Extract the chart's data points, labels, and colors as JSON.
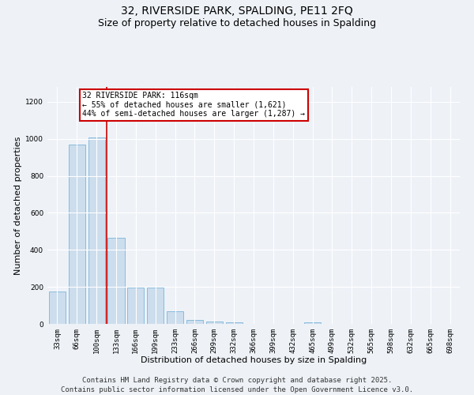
{
  "title_line1": "32, RIVERSIDE PARK, SPALDING, PE11 2FQ",
  "title_line2": "Size of property relative to detached houses in Spalding",
  "xlabel": "Distribution of detached houses by size in Spalding",
  "ylabel": "Number of detached properties",
  "categories": [
    "33sqm",
    "66sqm",
    "100sqm",
    "133sqm",
    "166sqm",
    "199sqm",
    "233sqm",
    "266sqm",
    "299sqm",
    "332sqm",
    "366sqm",
    "399sqm",
    "432sqm",
    "465sqm",
    "499sqm",
    "532sqm",
    "565sqm",
    "598sqm",
    "632sqm",
    "665sqm",
    "698sqm"
  ],
  "values": [
    175,
    970,
    1005,
    465,
    195,
    195,
    70,
    20,
    13,
    7,
    0,
    0,
    0,
    10,
    0,
    0,
    0,
    0,
    0,
    0,
    0
  ],
  "bar_color": "#ccdded",
  "bar_edge_color": "#88bbdd",
  "red_line_x": 2.5,
  "red_line_color": "#cc0000",
  "annotation_text": "32 RIVERSIDE PARK: 116sqm\n← 55% of detached houses are smaller (1,621)\n44% of semi-detached houses are larger (1,287) →",
  "annotation_box_color": "#ffffff",
  "annotation_box_edge": "#cc0000",
  "ylim": [
    0,
    1280
  ],
  "yticks": [
    0,
    200,
    400,
    600,
    800,
    1000,
    1200
  ],
  "background_color": "#eef2f7",
  "footer_line1": "Contains HM Land Registry data © Crown copyright and database right 2025.",
  "footer_line2": "Contains public sector information licensed under the Open Government Licence v3.0.",
  "grid_color": "#ffffff",
  "title_fontsize": 10,
  "subtitle_fontsize": 9,
  "axis_label_fontsize": 8,
  "tick_fontsize": 6.5,
  "annotation_fontsize": 7,
  "footer_fontsize": 6.5
}
